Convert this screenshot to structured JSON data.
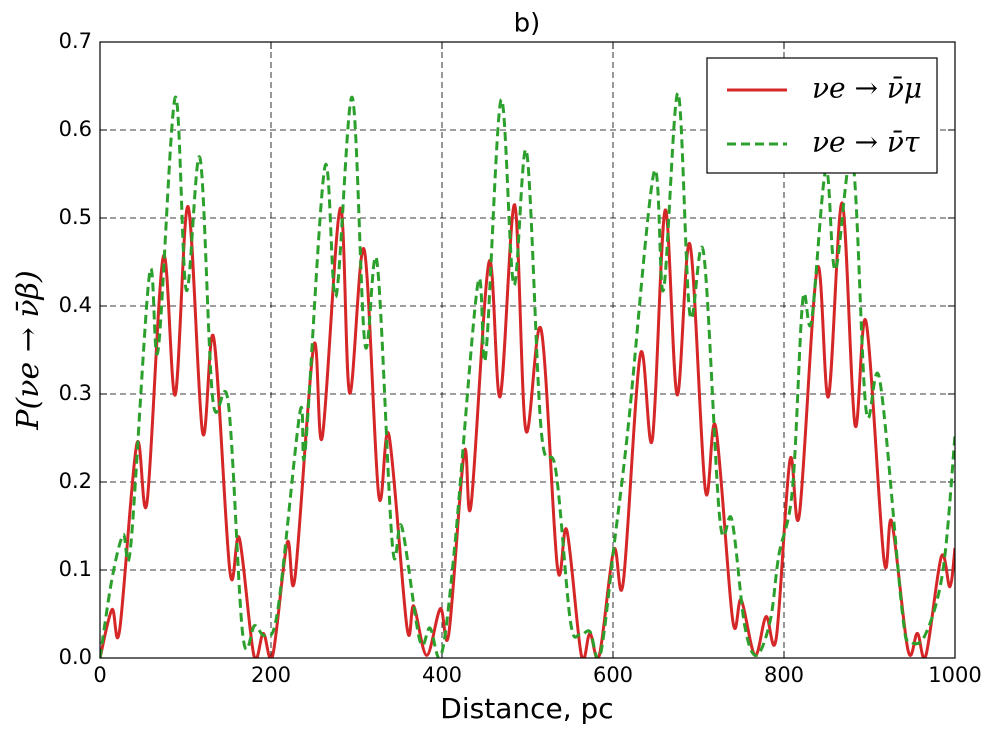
{
  "chart_data": {
    "type": "line",
    "title": "b)",
    "xlabel": "Distance, pc",
    "ylabel": "P(νe → ν̄β)",
    "xlim": [
      0,
      1000
    ],
    "ylim": [
      0,
      0.7
    ],
    "xticks": [
      0,
      200,
      400,
      600,
      800,
      1000
    ],
    "yticks": [
      {
        "value": 0,
        "label": "0.0"
      },
      0.1,
      0.2,
      0.3,
      0.4,
      0.5,
      0.6,
      0.7
    ],
    "grid": true,
    "legend": "upper right",
    "series": [
      {
        "name": "νe → ν̄μ",
        "color": "#d62728",
        "dash": "solid",
        "x": [
          0,
          14,
          23,
          43,
          55,
          74,
          88,
          103,
          120,
          133,
          152,
          163,
          180,
          191,
          202,
          219,
          228,
          250,
          260,
          281,
          292,
          309,
          326,
          338,
          359,
          367,
          382,
          398,
          408,
          426,
          434,
          455,
          468,
          485,
          498,
          516,
          535,
          546,
          563,
          573,
          584,
          601,
          612,
          632,
          646,
          661,
          675,
          690,
          708,
          720,
          740,
          750,
          766,
          779,
          791,
          807,
          818,
          839,
          852,
          868,
          883,
          896,
          917,
          926,
          945,
          956,
          966,
          984,
          994,
          1000
        ],
        "values": [
          0,
          0.055,
          0.032,
          0.243,
          0.177,
          0.456,
          0.299,
          0.513,
          0.256,
          0.364,
          0.098,
          0.136,
          0.003,
          0.028,
          0.003,
          0.131,
          0.091,
          0.355,
          0.251,
          0.511,
          0.301,
          0.464,
          0.185,
          0.253,
          0.035,
          0.059,
          0.003,
          0.056,
          0.028,
          0.234,
          0.174,
          0.45,
          0.297,
          0.515,
          0.259,
          0.373,
          0.103,
          0.145,
          0.003,
          0.028,
          0.003,
          0.123,
          0.086,
          0.345,
          0.248,
          0.509,
          0.299,
          0.47,
          0.191,
          0.263,
          0.043,
          0.066,
          0.003,
          0.047,
          0.023,
          0.225,
          0.163,
          0.443,
          0.297,
          0.517,
          0.265,
          0.382,
          0.111,
          0.155,
          0.009,
          0.028,
          0.003,
          0.115,
          0.081,
          0.125
        ]
      },
      {
        "name": "νe → ν̄τ",
        "color": "#2ca02c",
        "dash": "dashed",
        "x": [
          0,
          14,
          27,
          36,
          58,
          68,
          88,
          101,
          117,
          132,
          150,
          167,
          181,
          193,
          208,
          234,
          240,
          263,
          276,
          295,
          310,
          324,
          342,
          353,
          374,
          386,
          399,
          415,
          442,
          451,
          469,
          484,
          499,
          516,
          533,
          550,
          561,
          573,
          585,
          602,
          618,
          648,
          659,
          676,
          690,
          706,
          725,
          739,
          754,
          768,
          784,
          794,
          810,
          822,
          832,
          849,
          860,
          880,
          896,
          912,
          938,
          947,
          965,
          986,
          1000
        ],
        "values": [
          0,
          0.09,
          0.14,
          0.128,
          0.437,
          0.35,
          0.637,
          0.418,
          0.568,
          0.293,
          0.29,
          0.026,
          0.037,
          0.026,
          0.055,
          0.28,
          0.236,
          0.558,
          0.411,
          0.637,
          0.356,
          0.45,
          0.128,
          0.149,
          0.02,
          0.034,
          0.003,
          0.128,
          0.426,
          0.342,
          0.634,
          0.424,
          0.575,
          0.259,
          0.214,
          0.043,
          0.026,
          0.03,
          0.003,
          0.134,
          0.265,
          0.552,
          0.418,
          0.642,
          0.39,
          0.46,
          0.157,
          0.157,
          0.037,
          0.003,
          0.043,
          0.117,
          0.193,
          0.407,
          0.382,
          0.555,
          0.441,
          0.568,
          0.282,
          0.316,
          0.055,
          0.02,
          0.026,
          0.1,
          0.253
        ]
      }
    ]
  }
}
